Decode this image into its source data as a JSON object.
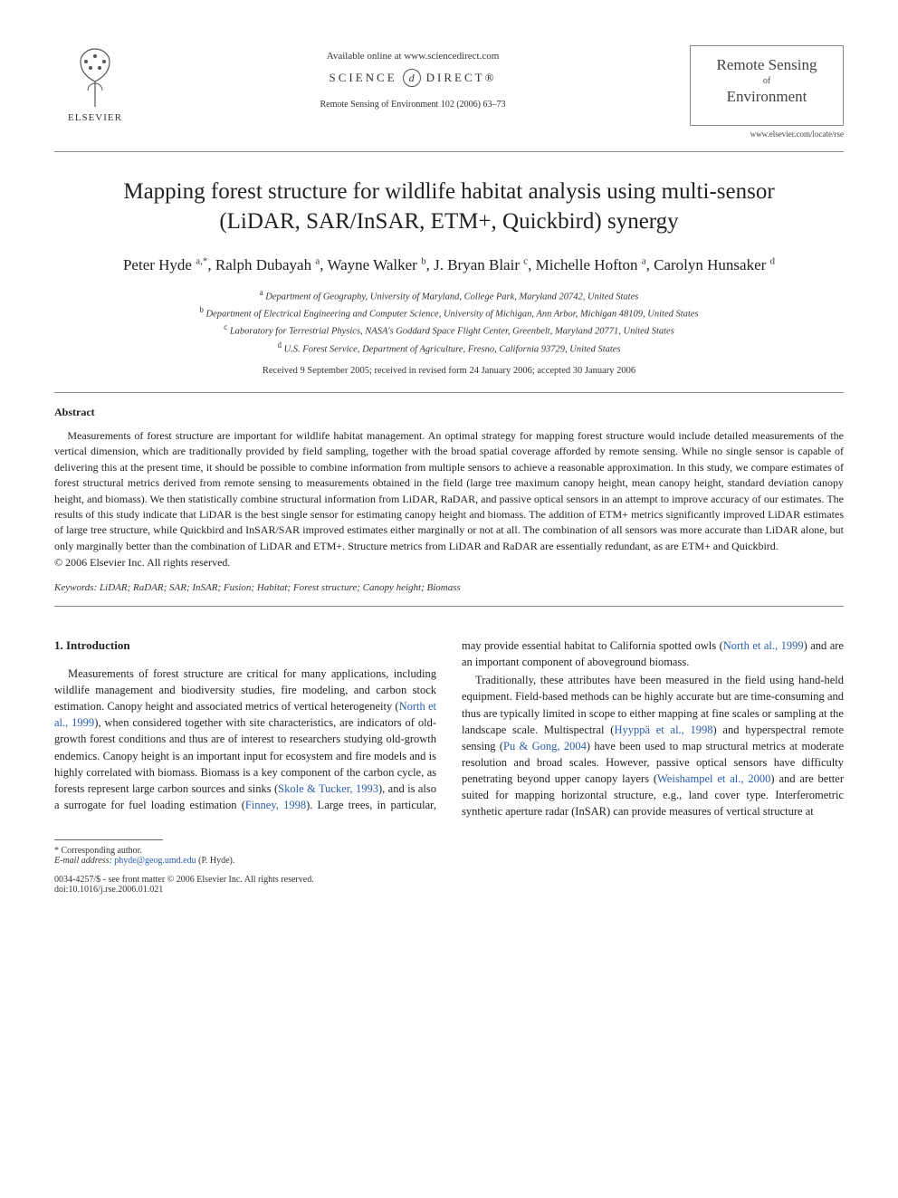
{
  "header": {
    "publisher_label": "ELSEVIER",
    "available_line": "Available online at www.sciencedirect.com",
    "sciencedirect_left": "SCIENCE",
    "sciencedirect_right": "DIRECT®",
    "citation": "Remote Sensing of Environment 102 (2006) 63–73",
    "journal_name_1": "Remote Sensing",
    "journal_of": "of",
    "journal_name_2": "Environment",
    "locate": "www.elsevier.com/locate/rse"
  },
  "title": "Mapping forest structure for wildlife habitat analysis using multi-sensor (LiDAR, SAR/InSAR, ETM+, Quickbird) synergy",
  "authors_html": "Peter Hyde <sup>a,*</sup>, Ralph Dubayah <sup>a</sup>, Wayne Walker <sup>b</sup>, J. Bryan Blair <sup>c</sup>, Michelle Hofton <sup>a</sup>, Carolyn Hunsaker <sup>d</sup>",
  "affiliations": [
    "a Department of Geography, University of Maryland, College Park, Maryland 20742, United States",
    "b Department of Electrical Engineering and Computer Science, University of Michigan, Ann Arbor, Michigan 48109, United States",
    "c Laboratory for Terrestrial Physics, NASA's Goddard Space Flight Center, Greenbelt, Maryland 20771, United States",
    "d U.S. Forest Service, Department of Agriculture, Fresno, California 93729, United States"
  ],
  "dates": "Received 9 September 2005; received in revised form 24 January 2006; accepted 30 January 2006",
  "abstract": {
    "heading": "Abstract",
    "text": "Measurements of forest structure are important for wildlife habitat management. An optimal strategy for mapping forest structure would include detailed measurements of the vertical dimension, which are traditionally provided by field sampling, together with the broad spatial coverage afforded by remote sensing. While no single sensor is capable of delivering this at the present time, it should be possible to combine information from multiple sensors to achieve a reasonable approximation. In this study, we compare estimates of forest structural metrics derived from remote sensing to measurements obtained in the field (large tree maximum canopy height, mean canopy height, standard deviation canopy height, and biomass). We then statistically combine structural information from LiDAR, RaDAR, and passive optical sensors in an attempt to improve accuracy of our estimates. The results of this study indicate that LiDAR is the best single sensor for estimating canopy height and biomass. The addition of ETM+ metrics significantly improved LiDAR estimates of large tree structure, while Quickbird and InSAR/SAR improved estimates either marginally or not at all. The combination of all sensors was more accurate than LiDAR alone, but only marginally better than the combination of LiDAR and ETM+. Structure metrics from LiDAR and RaDAR are essentially redundant, as are ETM+ and Quickbird.",
    "copyright": "© 2006 Elsevier Inc. All rights reserved."
  },
  "keywords": {
    "label": "Keywords:",
    "list": "LiDAR; RaDAR; SAR; InSAR; Fusion; Habitat; Forest structure; Canopy height; Biomass"
  },
  "section1": {
    "heading": "1. Introduction",
    "p1a": "Measurements of forest structure are critical for many applications, including wildlife management and biodiversity studies, fire modeling, and carbon stock estimation. Canopy height and associated metrics of vertical heterogeneity (",
    "p1link1": "North et al., 1999",
    "p1b": "), when considered together with site characteristics, are indicators of old-growth forest conditions and thus are of interest to researchers studying old-growth endemics. Canopy height is an important input for ecosystem and fire models and is highly correlated with biomass. Biomass is a key component of the carbon cycle, as forests represent large carbon sources and sinks (",
    "p1link2": "Skole & Tucker, 1993",
    "p1c": "), and is also a surrogate for fuel loading estimation (",
    "p1link3": "Finney, 1998",
    "p1d": "). Large trees, in particular, may provide essential habitat to California spotted owls (",
    "p1link4": "North et al., 1999",
    "p1e": ") and are an important component of aboveground biomass.",
    "p2a": "Traditionally, these attributes have been measured in the field using hand-held equipment. Field-based methods can be highly accurate but are time-consuming and thus are typically limited in scope to either mapping at fine scales or sampling at the landscape scale. Multispectral (",
    "p2link1": "Hyyppä et al., 1998",
    "p2b": ") and hyperspectral remote sensing (",
    "p2link2": "Pu & Gong, 2004",
    "p2c": ") have been used to map structural metrics at moderate resolution and broad scales. However, passive optical sensors have difficulty penetrating beyond upper canopy layers (",
    "p2link3": "Weishampel et al., 2000",
    "p2d": ") and are better suited for mapping horizontal structure, e.g., land cover type. Interferometric synthetic aperture radar (InSAR) can provide measures of vertical structure at"
  },
  "footer": {
    "corr_label": "* Corresponding author.",
    "email_label": "E-mail address:",
    "email": "phyde@geog.umd.edu",
    "email_who": "(P. Hyde).",
    "issn_line": "0034-4257/$ - see front matter © 2006 Elsevier Inc. All rights reserved.",
    "doi": "doi:10.1016/j.rse.2006.01.021"
  },
  "colors": {
    "text": "#222222",
    "link": "#2a5db0",
    "rule": "#888888",
    "background": "#ffffff"
  }
}
